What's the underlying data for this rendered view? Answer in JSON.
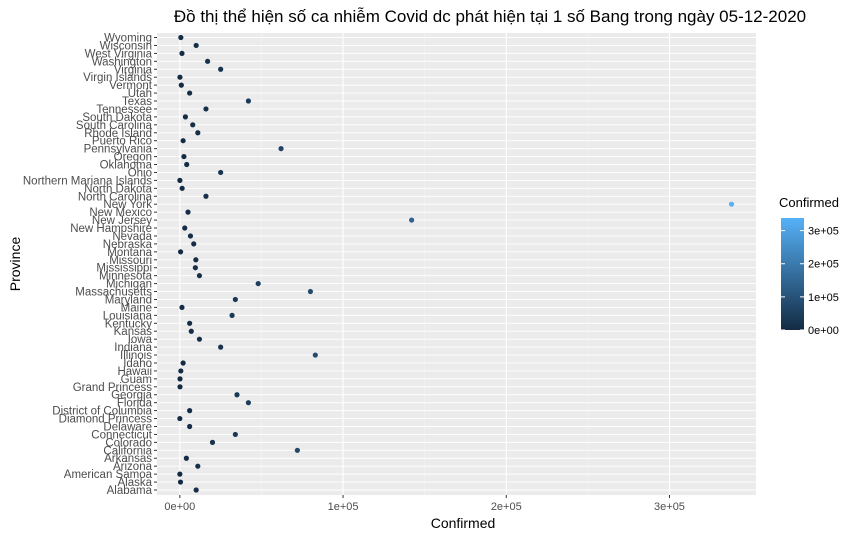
{
  "chart_data": {
    "type": "scatter",
    "title": "Đồ thị thể hiện số ca nhiễm Covid dc phát hiện tại 1 số Bang trong ngày 05-12-2020",
    "xlabel": "Confirmed",
    "ylabel": "Province",
    "xlim": [
      -14000,
      353000
    ],
    "x_ticks": [
      {
        "value": 0,
        "label": "0e+00"
      },
      {
        "value": 100000,
        "label": "1e+05"
      },
      {
        "value": 200000,
        "label": "2e+05"
      },
      {
        "value": 300000,
        "label": "3e+05"
      }
    ],
    "grid": true,
    "legend": {
      "title": "Confirmed",
      "position": "right",
      "ticks": [
        {
          "value": 0,
          "label": "0e+00"
        },
        {
          "value": 100000,
          "label": "1e+05"
        },
        {
          "value": 200000,
          "label": "2e+05"
        },
        {
          "value": 300000,
          "label": "3e+05"
        }
      ],
      "range": [
        0,
        338000
      ],
      "colors": {
        "low": "#132b43",
        "high": "#56b1f7"
      }
    },
    "categories": [
      "Alabama",
      "Alaska",
      "American Samoa",
      "Arizona",
      "Arkansas",
      "California",
      "Colorado",
      "Connecticut",
      "Delaware",
      "Diamond Princess",
      "District of Columbia",
      "Florida",
      "Georgia",
      "Grand Princess",
      "Guam",
      "Hawaii",
      "Idaho",
      "Illinois",
      "Indiana",
      "Iowa",
      "Kansas",
      "Kentucky",
      "Louisiana",
      "Maine",
      "Maryland",
      "Massachusetts",
      "Michigan",
      "Minnesota",
      "Mississippi",
      "Missouri",
      "Montana",
      "Nebraska",
      "Nevada",
      "New Hampshire",
      "New Jersey",
      "New Mexico",
      "New York",
      "North Carolina",
      "North Dakota",
      "Northern Mariana Islands",
      "Ohio",
      "Oklahoma",
      "Oregon",
      "Pennsylvania",
      "Puerto Rico",
      "Rhode Island",
      "South Carolina",
      "South Dakota",
      "Tennessee",
      "Texas",
      "Utah",
      "Vermont",
      "Virgin Islands",
      "Virginia",
      "Washington",
      "West Virginia",
      "Wisconsin",
      "Wyoming"
    ],
    "values": [
      10000,
      400,
      0,
      11000,
      4000,
      72000,
      20000,
      34000,
      6000,
      0,
      6000,
      42000,
      35000,
      100,
      100,
      600,
      2000,
      83000,
      25000,
      12000,
      7000,
      6000,
      32000,
      1300,
      34000,
      80000,
      48000,
      12000,
      9500,
      9800,
      450,
      8500,
      6500,
      3000,
      142000,
      5000,
      338000,
      16000,
      1400,
      20,
      25000,
      4200,
      2500,
      62000,
      2000,
      11000,
      7900,
      3400,
      16000,
      42000,
      6000,
      900,
      60,
      25000,
      17000,
      1300,
      10000,
      600
    ]
  }
}
